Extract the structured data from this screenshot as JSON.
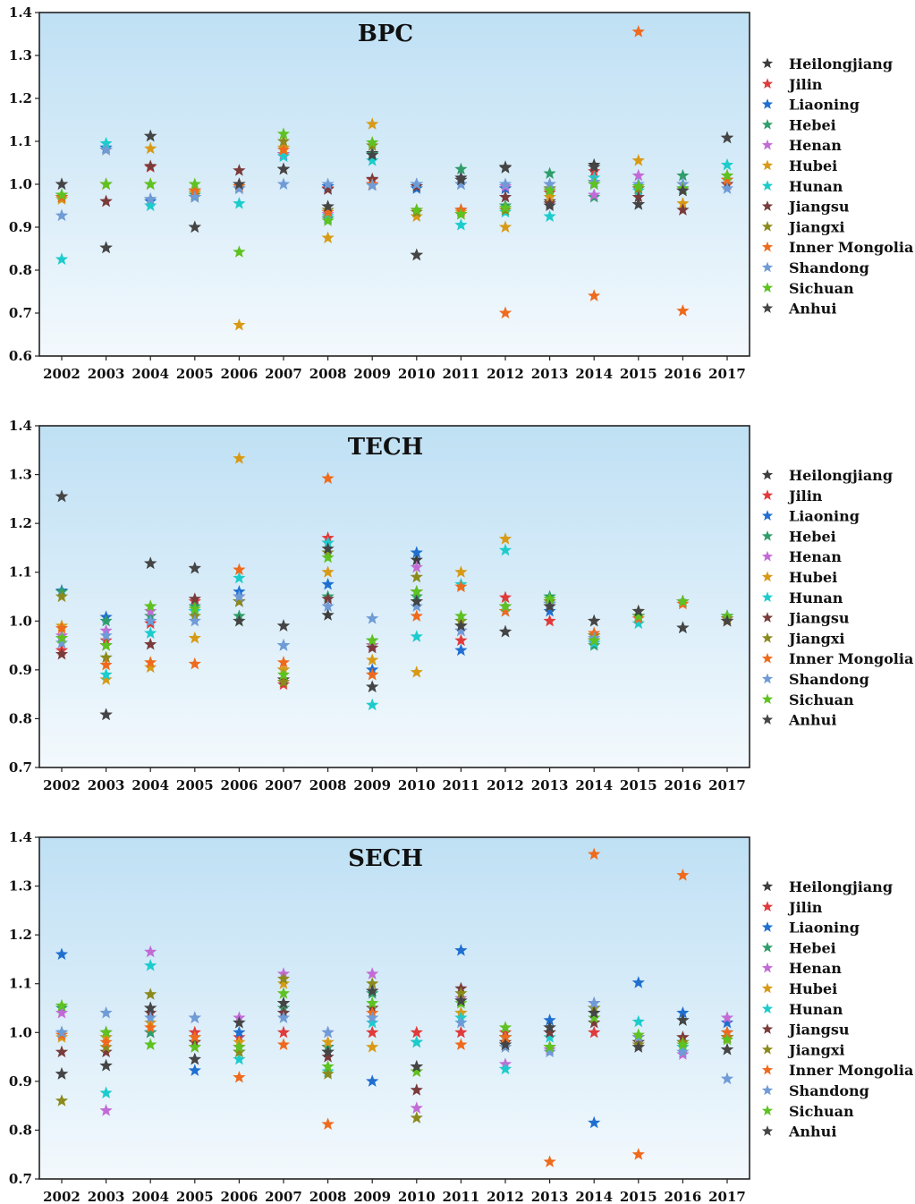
{
  "chart_data": [
    {
      "type": "scatter",
      "title": "BPC",
      "categories": [
        "2002",
        "2003",
        "2004",
        "2005",
        "2006",
        "2007",
        "2008",
        "2009",
        "2010",
        "2011",
        "2012",
        "2013",
        "2014",
        "2015",
        "2016",
        "2017"
      ],
      "ylim": [
        0.6,
        1.4
      ],
      "yticks": [
        "0.6",
        "0.7",
        "0.8",
        "0.9",
        "1.0",
        "1.1",
        "1.2",
        "1.3",
        "1.4"
      ],
      "grid": false,
      "legend_position": "right",
      "series": [
        {
          "name": "Heilongjiang",
          "color": "#3d3d3d",
          "values": [
            1.0,
            0.852,
            1.112,
            0.9,
            1.0,
            1.035,
            0.948,
            1.072,
            0.835,
            1.015,
            1.04,
            0.96,
            1.045,
            0.953,
            0.985,
            1.108
          ]
        },
        {
          "name": "Jilin",
          "color": "#e03a3a",
          "values": [
            0.97,
            0.96,
            1.04,
            0.985,
            1.0,
            1.07,
            0.99,
            1.01,
            1.0,
            0.94,
            0.99,
            0.98,
            1.03,
            0.99,
            0.99,
            1.0
          ]
        },
        {
          "name": "Liaoning",
          "color": "#1f6fd1",
          "values": [
            0.97,
            1.085,
            0.96,
            0.97,
            0.99,
            1.065,
            0.995,
            1.0,
            0.99,
            1.0,
            0.99,
            0.99,
            1.0,
            0.99,
            0.99,
            1.0
          ]
        },
        {
          "name": "Hebei",
          "color": "#2f9e6b",
          "values": [
            0.975,
            1.08,
            0.965,
            0.975,
            0.99,
            1.07,
            0.92,
            1.07,
            0.995,
            1.035,
            0.95,
            1.025,
            0.97,
            0.99,
            1.02,
            1.02
          ]
        },
        {
          "name": "Henan",
          "color": "#c26bd6",
          "values": [
            0.97,
            1.08,
            0.965,
            0.98,
            0.99,
            1.07,
            0.93,
            1.0,
            1.0,
            1.01,
            0.995,
            1.0,
            0.975,
            1.02,
            1.0,
            1.0
          ]
        },
        {
          "name": "Hubei",
          "color": "#d89a16",
          "values": [
            0.965,
            1.08,
            1.083,
            0.98,
            0.672,
            1.085,
            0.875,
            1.14,
            0.925,
            0.935,
            0.9,
            0.97,
            1.005,
            1.055,
            0.955,
            1.02
          ]
        },
        {
          "name": "Hunan",
          "color": "#1ccccc",
          "values": [
            0.825,
            1.095,
            0.95,
            0.97,
            0.955,
            1.065,
            0.925,
            1.055,
            1.0,
            0.905,
            0.935,
            0.925,
            1.015,
            0.985,
            0.99,
            1.045
          ]
        },
        {
          "name": "Jiangsu",
          "color": "#7a3b3b",
          "values": [
            0.97,
            0.96,
            1.042,
            0.97,
            1.032,
            1.035,
            0.988,
            1.012,
            0.995,
            0.94,
            0.97,
            0.955,
            1.04,
            0.97,
            0.94,
            1.0
          ]
        },
        {
          "name": "Jiangxi",
          "color": "#8c8a1c",
          "values": [
            0.97,
            1.0,
            1.0,
            0.985,
            0.995,
            1.1,
            0.94,
            1.09,
            0.935,
            0.93,
            0.94,
            0.99,
            1.005,
            0.99,
            0.985,
            1.01
          ]
        },
        {
          "name": "Inner Mongolia",
          "color": "#ef6a1d",
          "values": [
            0.97,
            1.0,
            1.0,
            0.985,
            0.995,
            1.08,
            0.935,
            1.0,
            0.94,
            0.94,
            0.7,
            0.985,
            0.74,
            1.355,
            0.705,
            1.01
          ]
        },
        {
          "name": "Shandong",
          "color": "#6f9bd6",
          "values": [
            0.927,
            1.08,
            0.965,
            0.97,
            0.99,
            1.0,
            1.0,
            0.997,
            1.0,
            1.0,
            1.0,
            1.0,
            1.005,
            1.0,
            1.0,
            0.99
          ]
        },
        {
          "name": "Sichuan",
          "color": "#5ec220",
          "values": [
            0.975,
            1.0,
            1.0,
            1.0,
            0.842,
            1.117,
            0.915,
            1.097,
            0.94,
            0.93,
            0.945,
            0.985,
            1.0,
            0.995,
            0.99,
            1.02
          ]
        },
        {
          "name": "Anhui",
          "color": "#454545",
          "values": [
            1.0,
            0.852,
            1.112,
            0.9,
            1.0,
            1.035,
            0.948,
            1.068,
            0.835,
            1.01,
            1.038,
            0.95,
            1.04,
            0.953,
            0.985,
            1.108
          ]
        }
      ]
    },
    {
      "type": "scatter",
      "title": "TECH",
      "categories": [
        "2002",
        "2003",
        "2004",
        "2005",
        "2006",
        "2007",
        "2008",
        "2009",
        "2010",
        "2011",
        "2012",
        "2013",
        "2014",
        "2015",
        "2016",
        "2017"
      ],
      "ylim": [
        0.7,
        1.4
      ],
      "yticks": [
        "0.7",
        "0.8",
        "0.9",
        "1.0",
        "1.1",
        "1.2",
        "1.3",
        "1.4"
      ],
      "grid": false,
      "legend_position": "right",
      "series": [
        {
          "name": "Heilongjiang",
          "color": "#3d3d3d",
          "values": [
            1.255,
            0.808,
            1.118,
            1.108,
            1.04,
            0.99,
            1.012,
            0.865,
            1.125,
            0.99,
            0.978,
            1.03,
            1.0,
            1.02,
            0.986,
            1.0
          ]
        },
        {
          "name": "Jilin",
          "color": "#e03a3a",
          "values": [
            0.94,
            0.96,
            0.995,
            1.04,
            1.05,
            0.87,
            1.17,
            0.95,
            1.04,
            0.96,
            1.048,
            1.0,
            0.96,
            1.01,
            1.04,
            1.005
          ]
        },
        {
          "name": "Liaoning",
          "color": "#1f6fd1",
          "values": [
            1.062,
            1.008,
            1.0,
            1.02,
            1.06,
            0.88,
            1.075,
            0.9,
            1.14,
            0.94,
            1.02,
            1.02,
            0.955,
            1.01,
            1.04,
            1.01
          ]
        },
        {
          "name": "Hebei",
          "color": "#2f9e6b",
          "values": [
            1.06,
            1.0,
            1.01,
            1.03,
            1.01,
            0.9,
            1.05,
            0.96,
            1.05,
            1.0,
            1.03,
            1.05,
            0.95,
            1.01,
            1.04,
            1.01
          ]
        },
        {
          "name": "Henan",
          "color": "#c26bd6",
          "values": [
            0.97,
            0.98,
            1.02,
            1.02,
            1.04,
            0.95,
            1.16,
            0.95,
            1.11,
            0.98,
            1.03,
            1.04,
            0.97,
            1.01,
            1.04,
            1.01
          ]
        },
        {
          "name": "Hubei",
          "color": "#d89a16",
          "values": [
            0.99,
            0.88,
            0.905,
            0.965,
            1.333,
            0.9,
            1.1,
            0.92,
            0.895,
            1.1,
            1.168,
            1.04,
            0.97,
            1.02,
            1.04,
            1.0
          ]
        },
        {
          "name": "Hunan",
          "color": "#1ccccc",
          "values": [
            0.965,
            0.89,
            0.975,
            1.02,
            1.088,
            0.95,
            1.16,
            0.828,
            0.968,
            1.075,
            1.145,
            1.04,
            0.955,
            0.995,
            1.04,
            1.01
          ]
        },
        {
          "name": "Jiangsu",
          "color": "#7a3b3b",
          "values": [
            0.932,
            0.95,
            0.952,
            1.045,
            1.04,
            0.88,
            1.045,
            0.945,
            1.06,
            0.99,
            1.03,
            1.035,
            0.96,
            1.01,
            1.04,
            1.0
          ]
        },
        {
          "name": "Jiangxi",
          "color": "#8c8a1c",
          "values": [
            1.05,
            0.925,
            1.03,
            1.01,
            1.04,
            0.875,
            1.14,
            0.89,
            1.09,
            1.0,
            1.03,
            1.04,
            0.97,
            1.01,
            1.04,
            1.005
          ]
        },
        {
          "name": "Inner Mongolia",
          "color": "#ef6a1d",
          "values": [
            0.985,
            0.91,
            0.915,
            0.912,
            1.105,
            0.915,
            1.292,
            0.89,
            1.01,
            1.07,
            1.02,
            1.03,
            0.975,
            1.005,
            1.035,
            1.0
          ]
        },
        {
          "name": "Shandong",
          "color": "#6f9bd6",
          "values": [
            0.955,
            0.97,
            1.0,
            1.0,
            1.05,
            0.95,
            1.03,
            1.005,
            1.03,
            0.98,
            1.03,
            1.035,
            0.965,
            1.01,
            1.04,
            1.01
          ]
        },
        {
          "name": "Sichuan",
          "color": "#5ec220",
          "values": [
            0.965,
            0.95,
            1.03,
            1.025,
            1.0,
            0.89,
            1.13,
            0.96,
            1.06,
            1.01,
            1.03,
            1.045,
            0.96,
            1.01,
            1.04,
            1.01
          ]
        },
        {
          "name": "Anhui",
          "color": "#454545",
          "values": [
            1.255,
            0.808,
            1.118,
            1.108,
            1.0,
            0.99,
            1.148,
            0.865,
            1.04,
            0.99,
            0.978,
            1.03,
            1.0,
            1.02,
            0.986,
            1.0
          ]
        }
      ]
    },
    {
      "type": "scatter",
      "title": "SECH",
      "categories": [
        "2002",
        "2003",
        "2004",
        "2005",
        "2006",
        "2007",
        "2008",
        "2009",
        "2010",
        "2011",
        "2012",
        "2013",
        "2014",
        "2015",
        "2016",
        "2017"
      ],
      "ylim": [
        0.7,
        1.4
      ],
      "yticks": [
        "0.7",
        "0.8",
        "0.9",
        "1.0",
        "1.1",
        "1.2",
        "1.3",
        "1.4"
      ],
      "grid": false,
      "legend_position": "right",
      "series": [
        {
          "name": "Heilongjiang",
          "color": "#3d3d3d",
          "values": [
            0.915,
            0.932,
            1.05,
            0.945,
            1.02,
            1.06,
            0.96,
            1.085,
            0.93,
            1.065,
            0.975,
            1.01,
            1.04,
            0.97,
            1.025,
            0.965
          ]
        },
        {
          "name": "Jilin",
          "color": "#e03a3a",
          "values": [
            1.0,
            1.0,
            1.0,
            1.0,
            0.99,
            1.0,
            0.97,
            1.0,
            1.0,
            1.0,
            1.0,
            1.0,
            1.0,
            0.99,
            0.99,
            1.0
          ]
        },
        {
          "name": "Liaoning",
          "color": "#1f6fd1",
          "values": [
            1.16,
            0.99,
            1.0,
            0.922,
            1.0,
            1.04,
            0.97,
            0.9,
            0.93,
            1.168,
            0.99,
            1.025,
            0.815,
            1.102,
            1.04,
            1.02
          ]
        },
        {
          "name": "Hebei",
          "color": "#2f9e6b",
          "values": [
            1.05,
            1.0,
            1.0,
            0.98,
            0.96,
            1.05,
            0.97,
            1.08,
            0.98,
            1.04,
            0.99,
            1.0,
            1.05,
            0.98,
            0.98,
            0.99
          ]
        },
        {
          "name": "Henan",
          "color": "#c26bd6",
          "values": [
            1.04,
            0.84,
            1.165,
            1.03,
            1.03,
            1.12,
            1.0,
            1.12,
            0.845,
            1.07,
            0.935,
            0.965,
            1.06,
            0.99,
            0.955,
            1.03
          ]
        },
        {
          "name": "Hubei",
          "color": "#d89a16",
          "values": [
            0.99,
            0.99,
            1.02,
            0.99,
            0.98,
            1.1,
            0.98,
            0.97,
            0.92,
            1.04,
            0.97,
            0.97,
            1.05,
            0.99,
            0.97,
            0.99
          ]
        },
        {
          "name": "Hunan",
          "color": "#1ccccc",
          "values": [
            1.0,
            0.876,
            1.137,
            0.99,
            0.945,
            1.04,
            0.92,
            1.02,
            0.98,
            1.03,
            0.925,
            0.99,
            1.04,
            1.022,
            0.97,
            1.0
          ]
        },
        {
          "name": "Jiangsu",
          "color": "#7a3b3b",
          "values": [
            0.96,
            0.96,
            1.04,
            0.98,
            0.97,
            1.04,
            0.95,
            1.05,
            0.882,
            1.09,
            0.98,
            1.0,
            1.02,
            0.98,
            0.99,
            0.99
          ]
        },
        {
          "name": "Jiangxi",
          "color": "#8c8a1c",
          "values": [
            0.86,
            0.97,
            1.078,
            0.97,
            0.96,
            1.11,
            0.915,
            1.1,
            0.825,
            1.08,
            0.99,
            0.97,
            1.05,
            0.975,
            0.98,
            0.99
          ]
        },
        {
          "name": "Inner Mongolia",
          "color": "#ef6a1d",
          "values": [
            0.995,
            0.98,
            1.01,
            0.99,
            0.908,
            0.975,
            0.812,
            1.04,
            0.93,
            0.975,
            0.99,
            0.735,
            1.365,
            0.75,
            1.322,
            1.0
          ]
        },
        {
          "name": "Shandong",
          "color": "#6f9bd6",
          "values": [
            1.0,
            1.04,
            1.03,
            1.03,
            1.02,
            1.03,
            1.0,
            1.03,
            0.93,
            1.02,
            0.97,
            0.96,
            1.06,
            0.99,
            0.96,
            0.905
          ]
        },
        {
          "name": "Sichuan",
          "color": "#5ec220",
          "values": [
            1.055,
            1.0,
            0.975,
            0.97,
            0.97,
            1.08,
            0.93,
            1.06,
            0.92,
            1.06,
            1.01,
            0.97,
            1.03,
            0.995,
            0.975,
            0.985
          ]
        },
        {
          "name": "Anhui",
          "color": "#454545",
          "values": [
            0.915,
            0.932,
            1.05,
            0.945,
            1.02,
            1.06,
            0.96,
            1.085,
            0.93,
            1.065,
            0.975,
            1.01,
            1.04,
            0.97,
            1.025,
            0.965
          ]
        }
      ]
    }
  ]
}
